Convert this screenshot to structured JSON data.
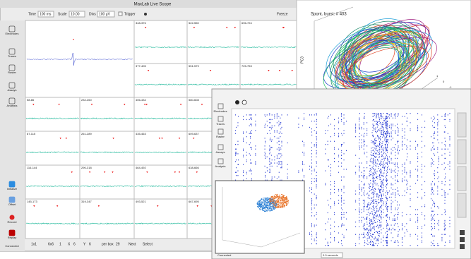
{
  "scope": {
    "title": "MaxLab Live Scope",
    "toolbar": {
      "time_label": "Time",
      "time": "100 ms",
      "scale_label": "Scale",
      "scale": "10.00",
      "divs_label": "Divs",
      "divs": "100 µV",
      "trigger": "Trigger",
      "freeze": "Freeze"
    },
    "sidebar": [
      "Electrodes",
      "Traces",
      "Raster",
      "Assays",
      "Analysis",
      "Initialize",
      "Offset",
      "Record",
      "Replay",
      "Connected"
    ],
    "cells": [
      "348-376",
      "522-550",
      "696-724",
      "377-405",
      "551-579",
      "725-753",
      "58-86",
      "232-260",
      "406-434",
      "580-608",
      "87-115",
      "261-289",
      "435-463",
      "609-637",
      "116-144",
      "290-318",
      "464-492",
      "638-666",
      "145-173",
      "319-347",
      "493-521",
      "667-695"
    ],
    "footer": [
      "1x1",
      "6x6",
      "1",
      "X",
      "6",
      "Y",
      "6",
      "per box",
      "29",
      "Next",
      "Select"
    ]
  },
  "pca": {
    "title": "Spont. burst: # 403",
    "xlabel": "PC2",
    "ylabel": "PC3",
    "zlabel": "PC1",
    "xticks": [
      "-0.5",
      "0",
      "0.5"
    ],
    "yticks": [
      "0"
    ],
    "zticks": [
      "1",
      "0",
      "-1",
      "-2"
    ]
  },
  "raster": {
    "sidebar": [
      "Electrodes",
      "Traces",
      "Raster",
      "Assays",
      "Analysis"
    ],
    "status": "Connected",
    "time": "0.0 seconds"
  }
}
